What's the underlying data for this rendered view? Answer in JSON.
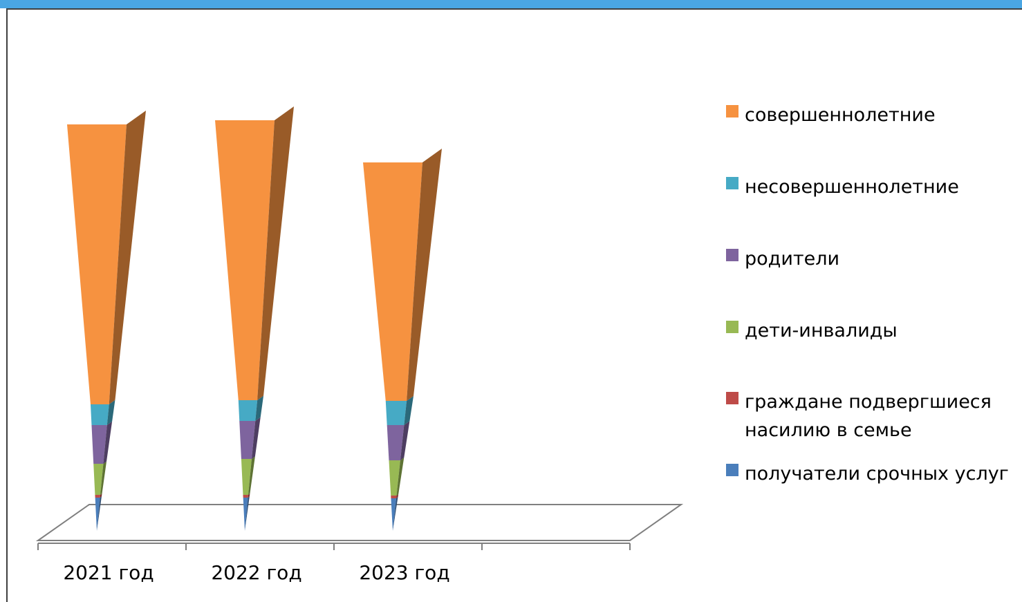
{
  "chart_data": {
    "type": "bar",
    "subtype": "3d-stacked-pyramid",
    "title": "",
    "xlabel": "",
    "ylabel": "",
    "categories": [
      "2021 год",
      "2022 год",
      "2023 год"
    ],
    "series": [
      {
        "name": "получатели срочных услуг",
        "values": [
          48,
          48,
          47
        ],
        "color": "#4a7ebb"
      },
      {
        "name": "граждане подвергшиеся насилию в семье",
        "values": [
          4,
          4,
          4
        ],
        "color": "#be4b48"
      },
      {
        "name": "дети-инвалиды",
        "values": [
          45,
          52,
          51
        ],
        "color": "#98b954"
      },
      {
        "name": "родители",
        "values": [
          56,
          55,
          51
        ],
        "color": "#7e649e"
      },
      {
        "name": "несовершеннолетние",
        "values": [
          30,
          30,
          35
        ],
        "color": "#46aac5"
      },
      {
        "name": "совершеннолетние",
        "values": [
          405,
          405,
          345
        ],
        "color": "#f69240"
      }
    ],
    "legend_position": "right",
    "grid": false
  }
}
